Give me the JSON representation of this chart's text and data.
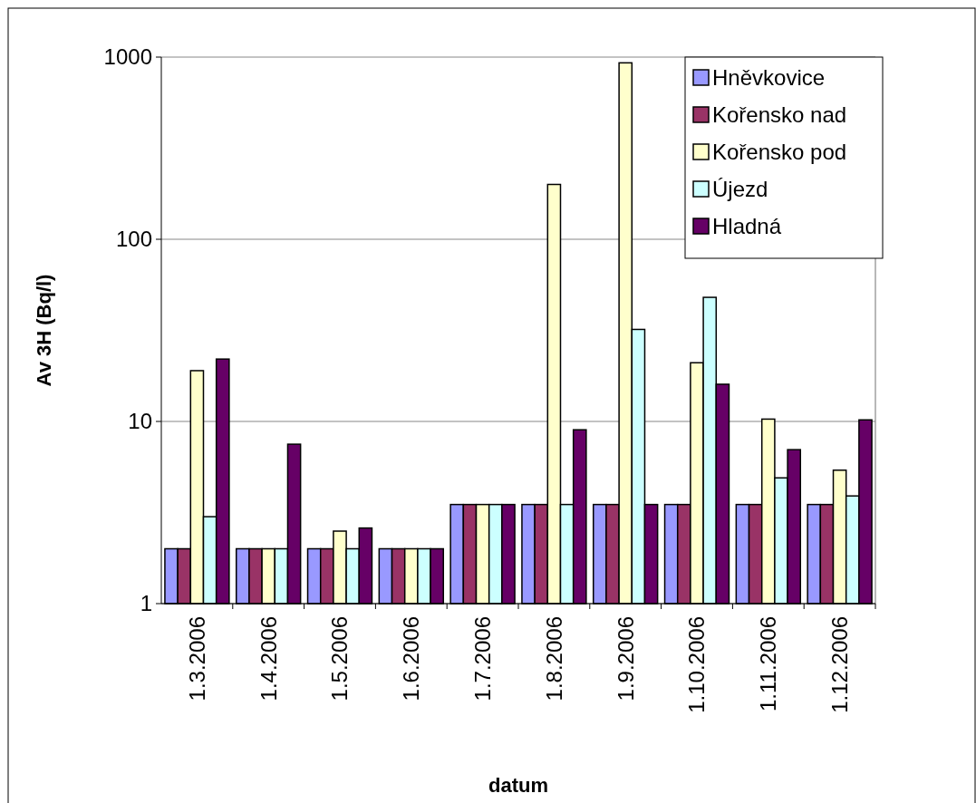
{
  "chart_data": {
    "type": "bar",
    "xlabel": "datum",
    "ylabel": "Av 3H (Bq/l)",
    "log": true,
    "grid": "y",
    "legend": "top right",
    "categories": [
      "1.3.2006",
      "1.4.2006",
      "1.5.2006",
      "1.6.2006",
      "1.7.2006",
      "1.8.2006",
      "1.9.2006",
      "1.10.2006",
      "1.11.2006",
      "1.12.2006"
    ],
    "ylim": [
      1,
      1000
    ],
    "yticks": [
      1,
      10,
      100,
      1000
    ],
    "series": [
      {
        "name": "Hněvkovice",
        "color": "#9999ff",
        "values": [
          2,
          2,
          2,
          2,
          3.5,
          3.5,
          3.5,
          3.5,
          3.5,
          3.5
        ]
      },
      {
        "name": "Kořensko nad",
        "color": "#993366",
        "values": [
          2,
          2,
          2,
          2,
          3.5,
          3.5,
          3.5,
          3.5,
          3.5,
          3.5
        ]
      },
      {
        "name": "Kořensko pod",
        "color": "#ffffcc",
        "values": [
          19,
          2,
          2.5,
          2,
          3.5,
          200,
          930,
          21,
          10.3,
          5.4
        ]
      },
      {
        "name": "Újezd",
        "color": "#ccffff",
        "values": [
          3,
          2,
          2,
          2,
          3.5,
          3.5,
          32,
          48,
          4.9,
          3.9
        ]
      },
      {
        "name": "Hladná",
        "color": "#660066",
        "values": [
          22,
          7.5,
          2.6,
          2,
          3.5,
          9,
          3.5,
          16,
          7,
          10.2
        ]
      }
    ]
  }
}
